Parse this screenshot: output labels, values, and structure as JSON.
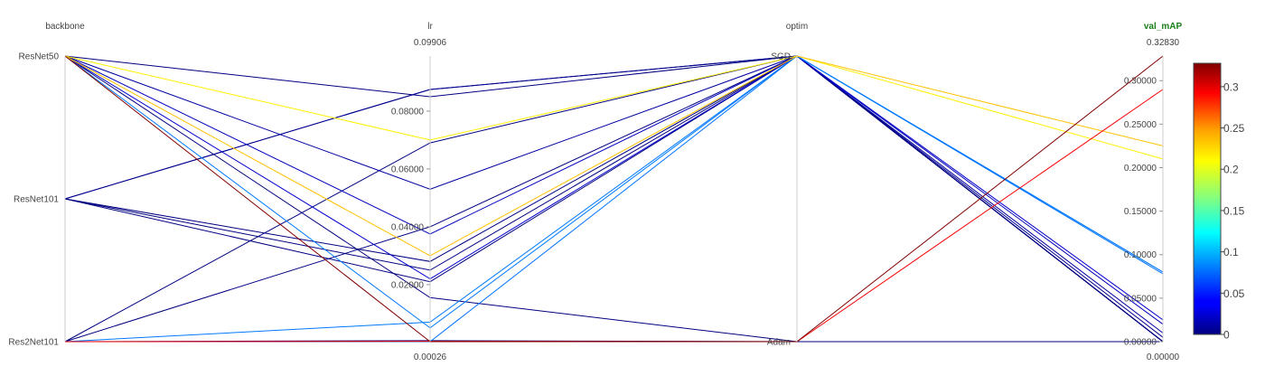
{
  "chart_data": {
    "type": "parallel_coordinates",
    "dimensions": [
      {
        "key": "backbone",
        "label": "backbone",
        "kind": "categorical",
        "categories": [
          "ResNet50",
          "ResNet101",
          "Res2Net101"
        ]
      },
      {
        "key": "lr",
        "label": "lr",
        "kind": "numeric",
        "range": [
          0.00026,
          0.09906
        ],
        "range_labels": [
          "0.00026",
          "0.09906"
        ],
        "ticks": [
          0.02,
          0.04,
          0.06,
          0.08
        ],
        "tick_labels": [
          "0.02000",
          "0.04000",
          "0.06000",
          "0.08000"
        ]
      },
      {
        "key": "optim",
        "label": "optim",
        "kind": "categorical",
        "categories": [
          "SGD",
          "Adam"
        ]
      },
      {
        "key": "val_mAP",
        "label": "val_mAP",
        "kind": "numeric",
        "range": [
          0,
          0.3283
        ],
        "range_labels": [
          "0.00000",
          "0.32830"
        ],
        "ticks": [
          0,
          0.05,
          0.1,
          0.15,
          0.2,
          0.25,
          0.3
        ],
        "tick_labels": [
          "0.00000",
          "0.05000",
          "0.10000",
          "0.15000",
          "0.20000",
          "0.25000",
          "0.30000"
        ],
        "color_by": true,
        "label_color": "#1a7f1a"
      }
    ],
    "colorbar": {
      "colormap": "jet",
      "range": [
        0,
        0.3283
      ],
      "ticks": [
        0,
        0.05,
        0.1,
        0.15,
        0.2,
        0.25,
        0.3
      ],
      "tick_labels": [
        "0",
        "0.05",
        "0.1",
        "0.15",
        "0.2",
        "0.25",
        "0.3"
      ]
    },
    "records": [
      {
        "backbone": "ResNet50",
        "lr": 0.085,
        "optim": "SGD",
        "val_mAP": 0.0
      },
      {
        "backbone": "ResNet50",
        "lr": 0.07,
        "optim": "SGD",
        "val_mAP": 0.21
      },
      {
        "backbone": "ResNet50",
        "lr": 0.03,
        "optim": "SGD",
        "val_mAP": 0.225
      },
      {
        "backbone": "ResNet50",
        "lr": 0.053,
        "optim": "SGD",
        "val_mAP": 0.01
      },
      {
        "backbone": "ResNet50",
        "lr": 0.0375,
        "optim": "SGD",
        "val_mAP": 0.02
      },
      {
        "backbone": "ResNet50",
        "lr": 0.022,
        "optim": "SGD",
        "val_mAP": 0.025
      },
      {
        "backbone": "ResNet50",
        "lr": 0.005,
        "optim": "SGD",
        "val_mAP": 0.08
      },
      {
        "backbone": "ResNet50",
        "lr": 0.0155,
        "optim": "Adam",
        "val_mAP": 0.0
      },
      {
        "backbone": "ResNet50",
        "lr": 0.00026,
        "optim": "Adam",
        "val_mAP": 0.3283
      },
      {
        "backbone": "ResNet101",
        "lr": 0.0875,
        "optim": "SGD",
        "val_mAP": 0.0
      },
      {
        "backbone": "ResNet101",
        "lr": 0.0875,
        "optim": "SGD",
        "val_mAP": 0.005
      },
      {
        "backbone": "ResNet101",
        "lr": 0.028,
        "optim": "SGD",
        "val_mAP": 0.0
      },
      {
        "backbone": "ResNet101",
        "lr": 0.025,
        "optim": "SGD",
        "val_mAP": 0.0
      },
      {
        "backbone": "ResNet101",
        "lr": 0.021,
        "optim": "SGD",
        "val_mAP": 0.0
      },
      {
        "backbone": "Res2Net101",
        "lr": 0.069,
        "optim": "SGD",
        "val_mAP": 0.0
      },
      {
        "backbone": "Res2Net101",
        "lr": 0.04,
        "optim": "SGD",
        "val_mAP": 0.0
      },
      {
        "backbone": "Res2Net101",
        "lr": 0.00026,
        "optim": "SGD",
        "val_mAP": 0.078
      },
      {
        "backbone": "Res2Net101",
        "lr": 0.007,
        "optim": "SGD",
        "val_mAP": 0.08
      },
      {
        "backbone": "Res2Net101",
        "lr": 0.00026,
        "optim": "Adam",
        "val_mAP": 0.0
      },
      {
        "backbone": "Res2Net101",
        "lr": 0.0004,
        "optim": "Adam",
        "val_mAP": 0.29
      },
      {
        "backbone": "Res2Net101",
        "lr": 0.0003,
        "optim": "Adam",
        "val_mAP": 0.0
      },
      {
        "backbone": "Res2Net101",
        "lr": 0.0006,
        "optim": "Adam",
        "val_mAP": 0.0
      }
    ]
  }
}
